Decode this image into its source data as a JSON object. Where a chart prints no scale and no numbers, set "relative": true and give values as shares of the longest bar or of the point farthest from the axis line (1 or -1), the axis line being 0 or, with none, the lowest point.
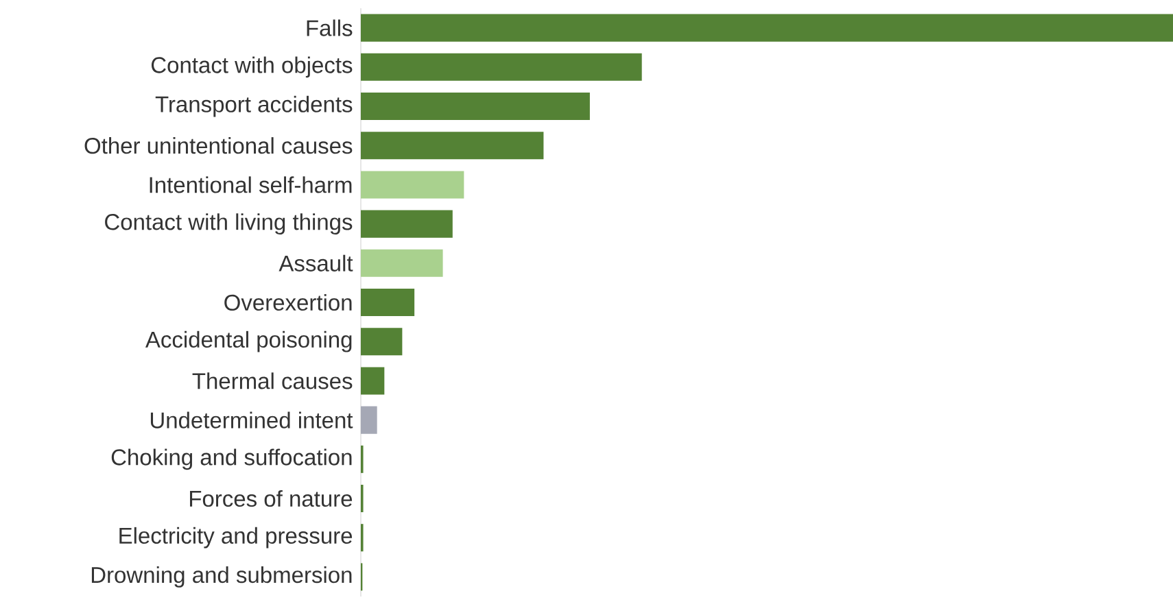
{
  "chart_data": {
    "type": "bar",
    "orientation": "horizontal",
    "relative": true,
    "categories": [
      "Falls",
      "Contact with objects",
      "Transport accidents",
      "Other unintentional causes",
      "Intentional self-harm",
      "Contact with living things",
      "Assault",
      "Overexertion",
      "Accidental poisoning",
      "Thermal causes",
      "Undetermined intent",
      "Choking and suffocation",
      "Forces of nature",
      "Electricity and pressure",
      "Drowning and submersion"
    ],
    "values": [
      1,
      0.346,
      0.282,
      0.225,
      0.127,
      0.113,
      0.101,
      0.066,
      0.051,
      0.029,
      0.02,
      0.003,
      0.003,
      0.003,
      0.002
    ],
    "colors": [
      "#548235",
      "#548235",
      "#548235",
      "#548235",
      "#a9d18e",
      "#548235",
      "#a9d18e",
      "#548235",
      "#548235",
      "#548235",
      "#a5a8b5",
      "#548235",
      "#548235",
      "#548235",
      "#548235"
    ]
  }
}
